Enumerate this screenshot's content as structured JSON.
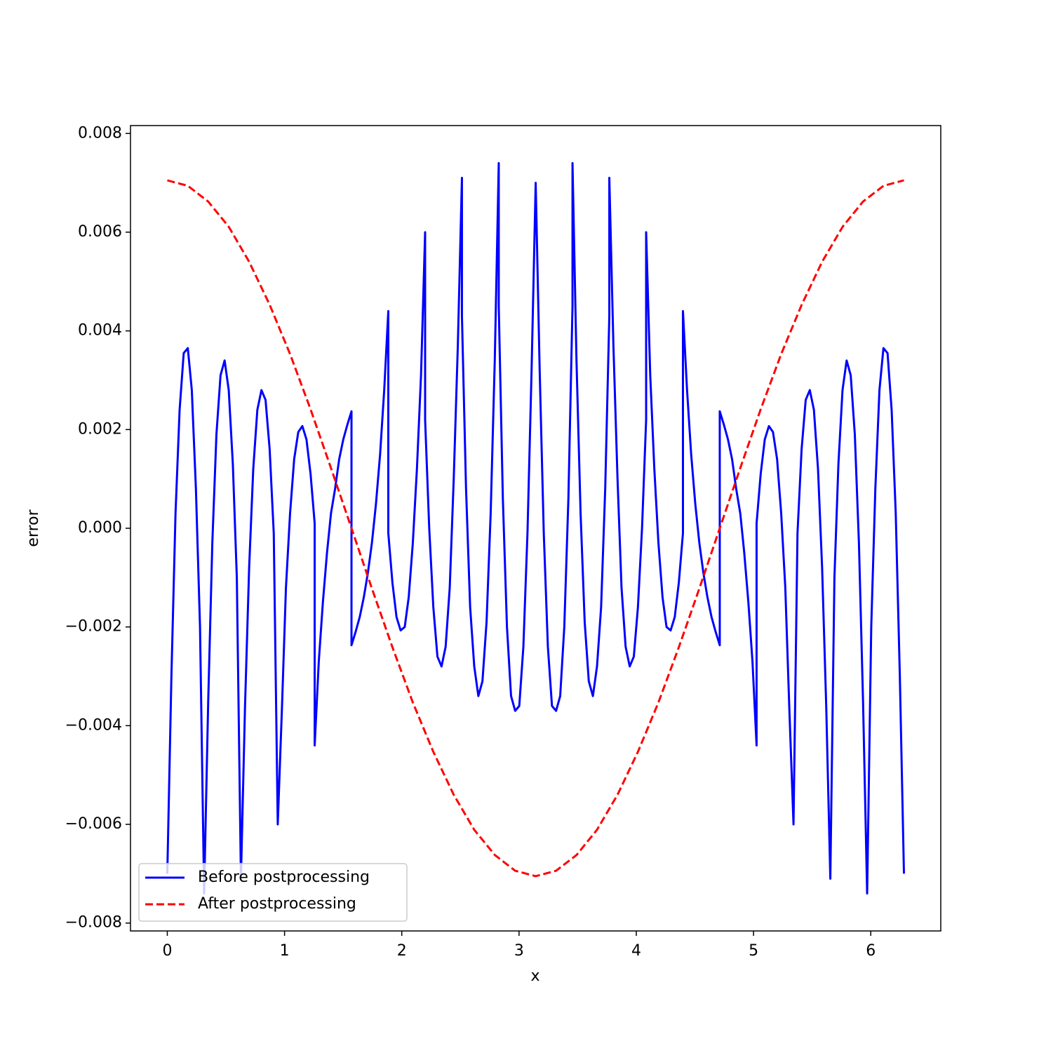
{
  "chart_data": {
    "type": "line",
    "xlabel": "x",
    "ylabel": "error",
    "xlim": [
      -0.314,
      6.597
    ],
    "ylim": [
      -0.00816,
      0.00816
    ],
    "xticks": [
      0,
      1,
      2,
      3,
      4,
      5,
      6
    ],
    "yticks": [
      {
        "value": -0.008,
        "label": "−0.008"
      },
      {
        "value": -0.006,
        "label": "−0.006"
      },
      {
        "value": -0.004,
        "label": "−0.004"
      },
      {
        "value": -0.002,
        "label": "−0.002"
      },
      {
        "value": 0,
        "label": "0.000"
      },
      0.002,
      0.004,
      0.006,
      0.008
    ],
    "grid": false,
    "legend_loc": "lower left",
    "series": [
      {
        "name": "Before postprocessing",
        "color": "#0000ff",
        "dashed": false,
        "x": [
          0.0,
          0.035,
          0.07,
          0.105,
          0.14,
          0.175,
          0.209,
          0.244,
          0.279,
          0.314,
          0.349,
          0.384,
          0.419,
          0.454,
          0.489,
          0.524,
          0.559,
          0.593,
          0.628,
          0.663,
          0.698,
          0.733,
          0.768,
          0.803,
          0.838,
          0.873,
          0.908,
          0.942,
          0.977,
          1.012,
          1.047,
          1.082,
          1.117,
          1.152,
          1.187,
          1.222,
          1.257,
          1.257,
          1.292,
          1.327,
          1.362,
          1.396,
          1.431,
          1.466,
          1.501,
          1.536,
          1.571,
          1.571,
          1.606,
          1.641,
          1.676,
          1.711,
          1.745,
          1.78,
          1.815,
          1.85,
          1.885,
          1.885,
          1.92,
          1.955,
          1.99,
          2.025,
          2.059,
          2.094,
          2.129,
          2.164,
          2.199,
          2.199,
          2.234,
          2.269,
          2.304,
          2.339,
          2.374,
          2.409,
          2.443,
          2.478,
          2.513,
          2.513,
          2.548,
          2.583,
          2.618,
          2.653,
          2.688,
          2.723,
          2.758,
          2.793,
          2.827,
          2.827,
          2.862,
          2.897,
          2.932,
          2.967,
          3.002,
          3.037,
          3.072,
          3.107,
          3.142,
          3.176,
          3.211,
          3.246,
          3.281,
          3.316,
          3.351,
          3.386,
          3.421,
          3.456,
          3.456,
          3.49,
          3.525,
          3.56,
          3.595,
          3.63,
          3.665,
          3.7,
          3.735,
          3.77,
          3.77,
          3.805,
          3.84,
          3.874,
          3.909,
          3.944,
          3.979,
          4.014,
          4.049,
          4.084,
          4.084,
          4.119,
          4.154,
          4.189,
          4.224,
          4.258,
          4.293,
          4.328,
          4.363,
          4.398,
          4.398,
          4.433,
          4.468,
          4.503,
          4.538,
          4.572,
          4.607,
          4.642,
          4.677,
          4.712,
          4.712,
          4.747,
          4.782,
          4.817,
          4.852,
          4.887,
          4.921,
          4.956,
          4.991,
          5.026,
          5.026,
          5.061,
          5.096,
          5.131,
          5.166,
          5.201,
          5.236,
          5.271,
          5.306,
          5.341,
          5.375,
          5.41,
          5.445,
          5.48,
          5.515,
          5.55,
          5.585,
          5.62,
          5.655,
          5.69,
          5.724,
          5.759,
          5.794,
          5.829,
          5.864,
          5.899,
          5.934,
          5.969,
          6.004,
          6.039,
          6.074,
          6.108,
          6.143,
          6.178,
          6.213,
          6.248,
          6.283
        ],
        "values": [
          -0.007,
          -0.003,
          0.0003,
          0.0024,
          0.00355,
          0.00365,
          0.0028,
          0.0008,
          -0.002,
          -0.0074,
          -0.0035,
          -0.0003,
          0.0019,
          0.0031,
          0.0034,
          0.0028,
          0.0013,
          -0.001,
          -0.0071,
          -0.0036,
          -0.0008,
          0.0012,
          0.0024,
          0.0028,
          0.0026,
          0.0016,
          -0.0001,
          -0.006,
          -0.0037,
          -0.0012,
          0.0003,
          0.0014,
          0.00195,
          0.00207,
          0.0018,
          0.0011,
          0.0001,
          -0.0044,
          -0.0027,
          -0.0015,
          -0.0005,
          0.0003,
          0.0008,
          0.0014,
          0.0018,
          0.0021,
          0.00237,
          -0.00237,
          -0.0021,
          -0.0018,
          -0.0014,
          -0.0009,
          -0.0003,
          0.0005,
          0.0015,
          0.0028,
          0.0044,
          -0.0001,
          -0.0011,
          -0.0018,
          -0.00207,
          -0.002,
          -0.0014,
          -0.0003,
          0.0012,
          0.0031,
          0.006,
          0.0022,
          0.0,
          -0.0016,
          -0.0026,
          -0.0028,
          -0.0024,
          -0.0012,
          0.001,
          0.0037,
          0.0071,
          0.0043,
          0.0008,
          -0.0016,
          -0.0028,
          -0.0034,
          -0.0031,
          -0.0019,
          0.0003,
          0.0034,
          0.0074,
          0.0045,
          0.0006,
          -0.002,
          -0.0034,
          -0.0037,
          -0.0036,
          -0.0024,
          -0.0001,
          0.0032,
          0.007,
          0.0032,
          -0.0001,
          -0.0024,
          -0.0036,
          -0.0037,
          -0.0034,
          -0.002,
          0.0006,
          0.0045,
          0.0074,
          0.0034,
          0.0003,
          -0.0019,
          -0.0031,
          -0.0034,
          -0.0028,
          -0.0016,
          0.0008,
          0.0043,
          0.0071,
          0.0037,
          0.001,
          -0.0012,
          -0.0024,
          -0.0028,
          -0.0026,
          -0.0016,
          0.0,
          0.0022,
          0.006,
          0.0031,
          0.0012,
          -0.0003,
          -0.0014,
          -0.002,
          -0.00207,
          -0.0018,
          -0.0011,
          -0.0001,
          0.0044,
          0.0028,
          0.0015,
          0.0005,
          -0.0003,
          -0.0009,
          -0.0014,
          -0.0018,
          -0.0021,
          -0.00237,
          0.00237,
          0.0021,
          0.0018,
          0.0014,
          0.0008,
          0.0003,
          -0.0005,
          -0.0015,
          -0.0027,
          -0.0044,
          0.0001,
          0.0011,
          0.0018,
          0.00207,
          0.00195,
          0.0014,
          0.0003,
          -0.0012,
          -0.0037,
          -0.006,
          -0.0001,
          0.0016,
          0.0026,
          0.0028,
          0.0024,
          0.0012,
          -0.0008,
          -0.0036,
          -0.0071,
          -0.001,
          0.0013,
          0.0028,
          0.0034,
          0.0031,
          0.0019,
          -0.0003,
          -0.0035,
          -0.0074,
          -0.002,
          0.0008,
          0.0028,
          0.00365,
          0.00355,
          0.0024,
          0.0003,
          -0.003,
          -0.007
        ]
      },
      {
        "name": "After postprocessing",
        "color": "#ff0000",
        "dashed": true,
        "x": [
          0,
          0.175,
          0.349,
          0.524,
          0.698,
          0.873,
          1.047,
          1.222,
          1.396,
          1.571,
          1.745,
          1.92,
          2.094,
          2.269,
          2.443,
          2.618,
          2.793,
          2.967,
          3.142,
          3.316,
          3.491,
          3.665,
          3.84,
          4.014,
          4.189,
          4.363,
          4.538,
          4.712,
          4.887,
          5.061,
          5.236,
          5.411,
          5.585,
          5.76,
          5.934,
          6.109,
          6.283
        ],
        "values": [
          0.00705,
          0.00694,
          0.00662,
          0.00611,
          0.0054,
          0.00453,
          0.00353,
          0.00241,
          0.00122,
          0,
          -0.00122,
          -0.00241,
          -0.00353,
          -0.00453,
          -0.0054,
          -0.00611,
          -0.00662,
          -0.00694,
          -0.00705,
          -0.00694,
          -0.00662,
          -0.00611,
          -0.0054,
          -0.00453,
          -0.00353,
          -0.00241,
          -0.00122,
          0,
          0.00122,
          0.00241,
          0.00353,
          0.00453,
          0.0054,
          0.00611,
          0.00662,
          0.00694,
          0.00705
        ]
      }
    ]
  }
}
